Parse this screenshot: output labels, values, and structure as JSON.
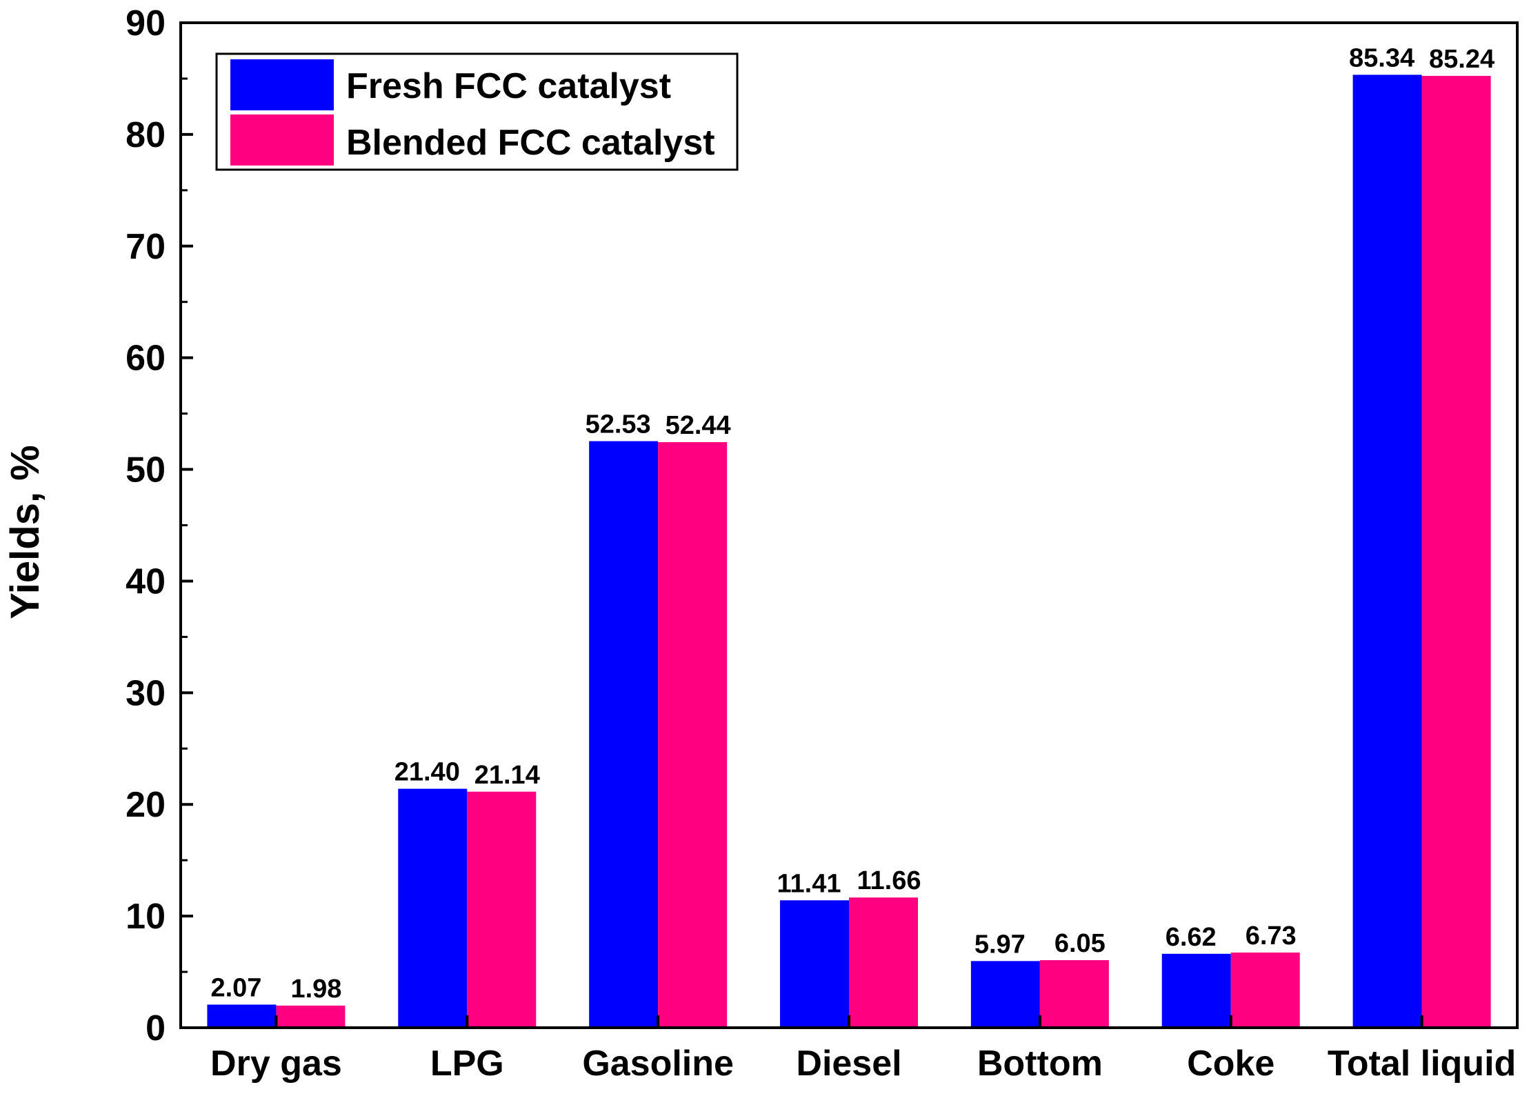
{
  "chart_data": {
    "type": "bar",
    "title": "",
    "xlabel": "",
    "ylabel": "Yields, %",
    "ylim": [
      0,
      90
    ],
    "yticks": [
      0,
      10,
      20,
      30,
      40,
      50,
      60,
      70,
      80,
      90
    ],
    "grid": false,
    "legend_position": "top-left",
    "categories": [
      "Dry gas",
      "LPG",
      "Gasoline",
      "Diesel",
      "Bottom",
      "Coke",
      "Total liquid"
    ],
    "series": [
      {
        "name": "Fresh FCC catalyst",
        "color": "#0000FF",
        "values": [
          2.07,
          21.4,
          52.53,
          11.41,
          5.97,
          6.62,
          85.34
        ],
        "labels": [
          "2.07",
          "21.40",
          "52.53",
          "11.41",
          "5.97",
          "6.62",
          "85.34"
        ]
      },
      {
        "name": "Blended FCC catalyst",
        "color": "#FF0080",
        "values": [
          1.98,
          21.14,
          52.44,
          11.66,
          6.05,
          6.73,
          85.24
        ],
        "labels": [
          "1.98",
          "21.14",
          "52.44",
          "11.66",
          "6.05",
          "6.73",
          "85.24"
        ]
      }
    ]
  }
}
